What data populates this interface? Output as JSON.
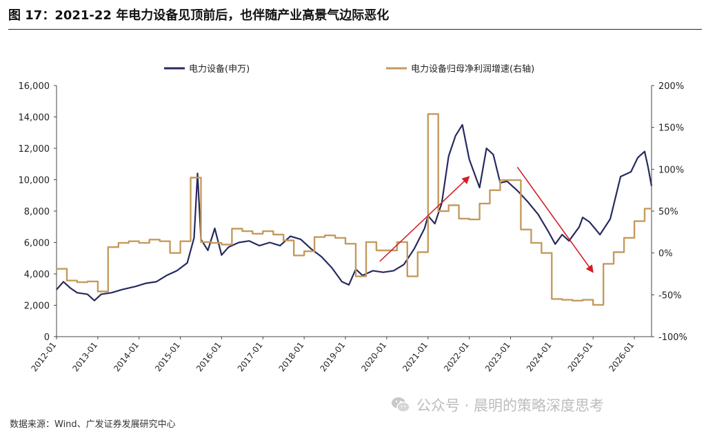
{
  "figure_title": "图 17：2021-22 年电力设备见顶前后，也伴随产业高景气边际恶化",
  "source_note": "数据来源：Wind、广发证券发展研究中心",
  "watermark": "公众号 · 晨明的策略深度思考",
  "colors": {
    "index_line": "#26295e",
    "profit_line": "#c49a5c",
    "arrow": "#d21f26",
    "axis": "#444444"
  },
  "chart_data": {
    "type": "line",
    "legend_position": "top",
    "grid": false,
    "x_ticks": [
      "2012-01",
      "2013-01",
      "2014-01",
      "2015-01",
      "2016-01",
      "2017-01",
      "2018-01",
      "2019-01",
      "2020-01",
      "2021-01",
      "2022-01",
      "2023-01",
      "2024-01",
      "2025-01",
      "2026-01"
    ],
    "x_range": [
      "2012-01",
      "2026-06"
    ],
    "y_left": {
      "min": 0,
      "max": 16000,
      "ticks": [
        "0",
        "2,000",
        "4,000",
        "6,000",
        "8,000",
        "10,000",
        "12,000",
        "14,000",
        "16,000"
      ]
    },
    "y_right": {
      "min": -100,
      "max": 200,
      "ticks": [
        "-100%",
        "-50%",
        "0%",
        "50%",
        "100%",
        "150%",
        "200%"
      ]
    },
    "series": [
      {
        "name": "电力设备(申万)",
        "axis": "left",
        "points": [
          [
            "2012-01",
            3000
          ],
          [
            "2012-03",
            3500
          ],
          [
            "2012-05",
            3100
          ],
          [
            "2012-07",
            2800
          ],
          [
            "2012-10",
            2700
          ],
          [
            "2012-12",
            2300
          ],
          [
            "2013-02",
            2700
          ],
          [
            "2013-05",
            2800
          ],
          [
            "2013-08",
            3000
          ],
          [
            "2013-12",
            3200
          ],
          [
            "2014-03",
            3400
          ],
          [
            "2014-06",
            3500
          ],
          [
            "2014-09",
            3900
          ],
          [
            "2014-12",
            4200
          ],
          [
            "2015-03",
            4700
          ],
          [
            "2015-05",
            6300
          ],
          [
            "2015-06",
            10400
          ],
          [
            "2015-07",
            6200
          ],
          [
            "2015-09",
            5500
          ],
          [
            "2015-11",
            6900
          ],
          [
            "2016-01",
            5200
          ],
          [
            "2016-03",
            5700
          ],
          [
            "2016-06",
            6000
          ],
          [
            "2016-09",
            6100
          ],
          [
            "2016-12",
            5800
          ],
          [
            "2017-03",
            6000
          ],
          [
            "2017-06",
            5800
          ],
          [
            "2017-09",
            6400
          ],
          [
            "2017-12",
            6200
          ],
          [
            "2018-03",
            5600
          ],
          [
            "2018-06",
            5100
          ],
          [
            "2018-09",
            4400
          ],
          [
            "2018-12",
            3500
          ],
          [
            "2019-02",
            3300
          ],
          [
            "2019-04",
            4300
          ],
          [
            "2019-06",
            3900
          ],
          [
            "2019-09",
            4200
          ],
          [
            "2019-12",
            4100
          ],
          [
            "2020-03",
            4200
          ],
          [
            "2020-06",
            4600
          ],
          [
            "2020-09",
            5600
          ],
          [
            "2020-12",
            6900
          ],
          [
            "2021-01",
            7700
          ],
          [
            "2021-03",
            7200
          ],
          [
            "2021-05",
            8500
          ],
          [
            "2021-07",
            11500
          ],
          [
            "2021-09",
            12800
          ],
          [
            "2021-11",
            13500
          ],
          [
            "2022-01",
            11300
          ],
          [
            "2022-04",
            9500
          ],
          [
            "2022-06",
            12000
          ],
          [
            "2022-08",
            11600
          ],
          [
            "2022-10",
            9800
          ],
          [
            "2022-12",
            9900
          ],
          [
            "2023-03",
            9300
          ],
          [
            "2023-06",
            8600
          ],
          [
            "2023-09",
            7800
          ],
          [
            "2023-12",
            6700
          ],
          [
            "2024-02",
            5900
          ],
          [
            "2024-04",
            6500
          ],
          [
            "2024-06",
            6100
          ],
          [
            "2024-09",
            7000
          ],
          [
            "2024-10",
            7600
          ],
          [
            "2024-12",
            7300
          ],
          [
            "2025-03",
            6500
          ],
          [
            "2025-06",
            7500
          ],
          [
            "2025-09",
            10200
          ],
          [
            "2025-12",
            10500
          ],
          [
            "2026-02",
            11400
          ],
          [
            "2026-04",
            11800
          ],
          [
            "2026-05",
            10800
          ],
          [
            "2026-06",
            9600
          ]
        ]
      },
      {
        "name": "电力设备归母净利润增速(右轴)",
        "axis": "right",
        "step": true,
        "points": [
          [
            "2012-01",
            -19
          ],
          [
            "2012-04",
            -33
          ],
          [
            "2012-07",
            -35
          ],
          [
            "2012-10",
            -34
          ],
          [
            "2013-01",
            -46
          ],
          [
            "2013-04",
            7
          ],
          [
            "2013-07",
            12
          ],
          [
            "2013-10",
            14
          ],
          [
            "2014-01",
            12
          ],
          [
            "2014-04",
            16
          ],
          [
            "2014-07",
            14
          ],
          [
            "2014-10",
            0
          ],
          [
            "2015-01",
            14
          ],
          [
            "2015-04",
            90
          ],
          [
            "2015-07",
            13
          ],
          [
            "2015-10",
            12
          ],
          [
            "2016-01",
            10
          ],
          [
            "2016-04",
            29
          ],
          [
            "2016-07",
            26
          ],
          [
            "2016-10",
            23
          ],
          [
            "2017-01",
            26
          ],
          [
            "2017-04",
            22
          ],
          [
            "2017-07",
            15
          ],
          [
            "2017-10",
            -3
          ],
          [
            "2018-01",
            2
          ],
          [
            "2018-04",
            19
          ],
          [
            "2018-07",
            21
          ],
          [
            "2018-10",
            18
          ],
          [
            "2019-01",
            11
          ],
          [
            "2019-04",
            -28
          ],
          [
            "2019-07",
            13
          ],
          [
            "2019-10",
            3
          ],
          [
            "2020-01",
            3
          ],
          [
            "2020-04",
            13
          ],
          [
            "2020-07",
            -28
          ],
          [
            "2020-10",
            1
          ],
          [
            "2021-01",
            166
          ],
          [
            "2021-04",
            50
          ],
          [
            "2021-07",
            57
          ],
          [
            "2021-10",
            41
          ],
          [
            "2022-01",
            40
          ],
          [
            "2022-04",
            59
          ],
          [
            "2022-07",
            75
          ],
          [
            "2022-10",
            87
          ],
          [
            "2023-01",
            87
          ],
          [
            "2023-04",
            28
          ],
          [
            "2023-07",
            12
          ],
          [
            "2023-10",
            0
          ],
          [
            "2024-01",
            -55
          ],
          [
            "2024-04",
            -56
          ],
          [
            "2024-07",
            -57
          ],
          [
            "2024-10",
            -56
          ],
          [
            "2025-01",
            -62
          ],
          [
            "2025-04",
            -13
          ],
          [
            "2025-07",
            1
          ],
          [
            "2025-10",
            18
          ],
          [
            "2026-01",
            38
          ],
          [
            "2026-04",
            53
          ],
          [
            "2026-06",
            53
          ]
        ]
      }
    ],
    "annotations": [
      {
        "type": "arrow",
        "from": [
          "2019-11",
          4800
        ],
        "to": [
          "2022-01",
          10200
        ]
      },
      {
        "type": "arrow",
        "from": [
          "2023-03",
          10800
        ],
        "to": [
          "2025-01",
          4100
        ]
      }
    ]
  }
}
